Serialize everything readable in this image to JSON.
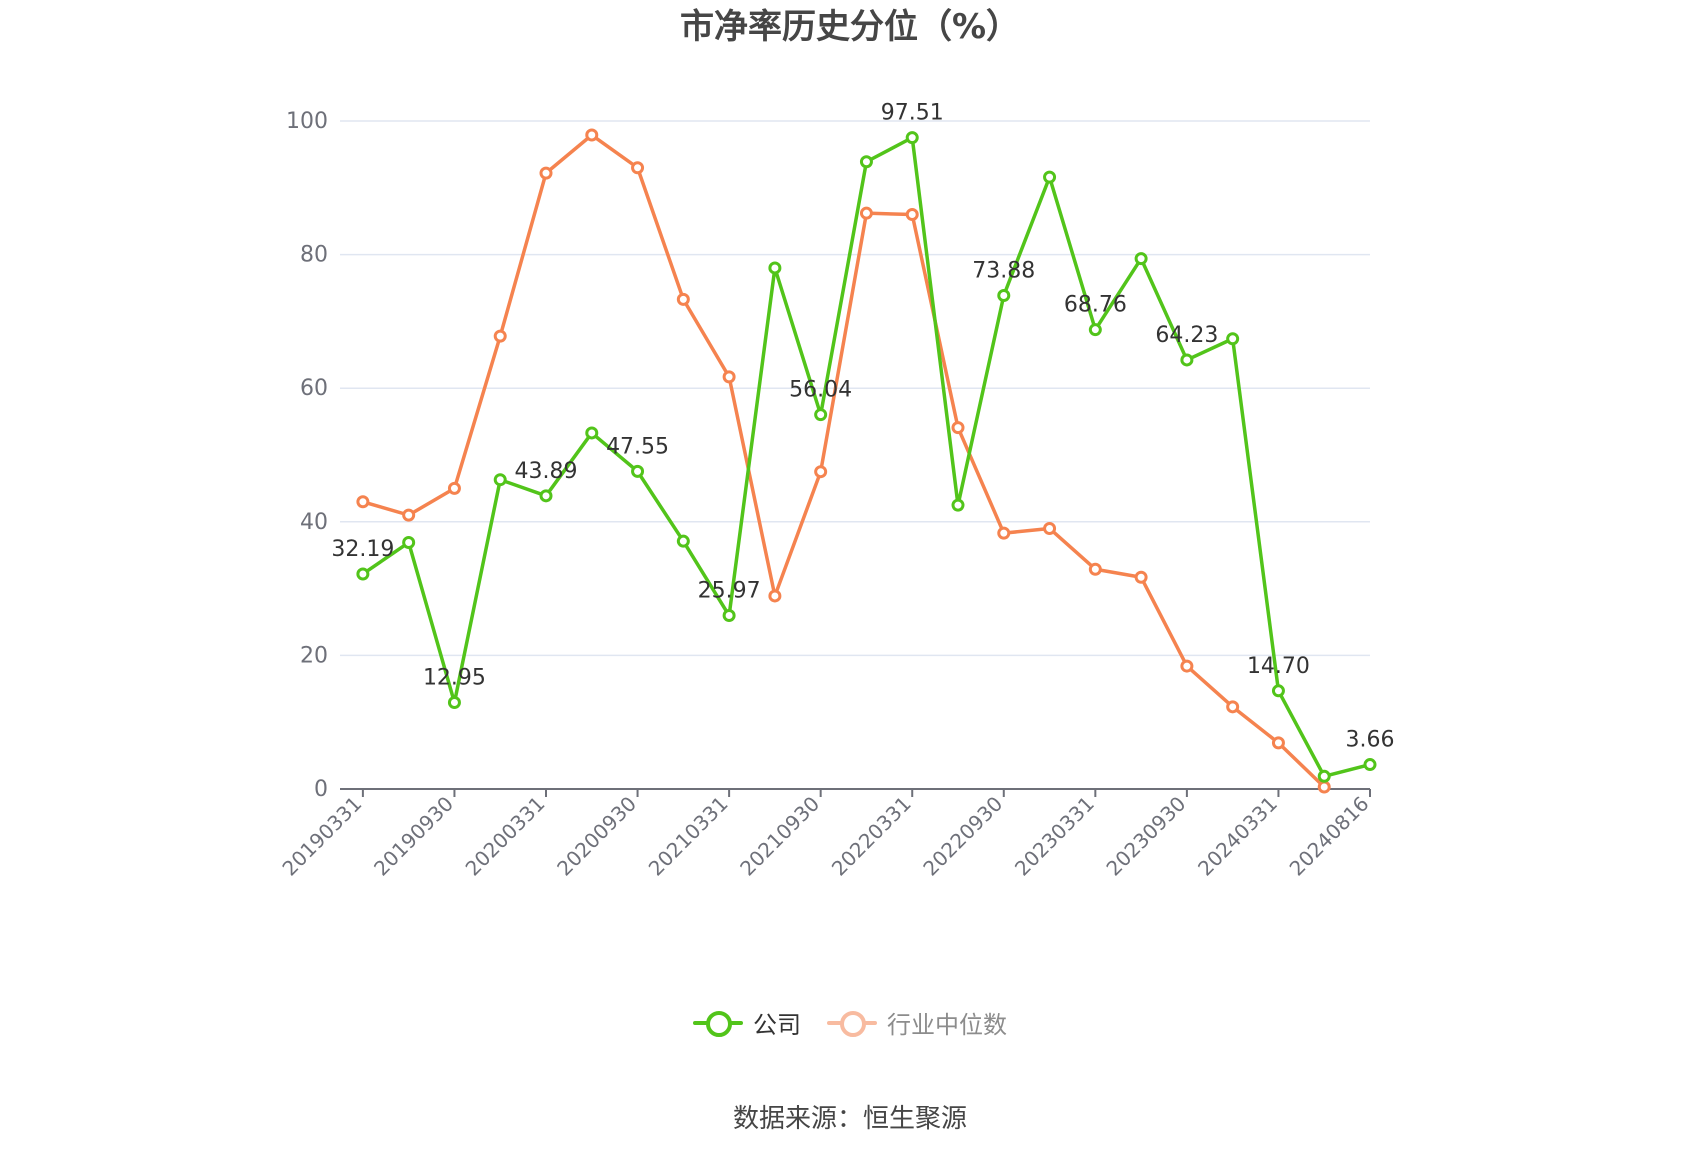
{
  "chart_data": {
    "type": "line",
    "title": "市净率历史分位（%）",
    "x": [
      "20190331",
      "20190630",
      "20190930",
      "20191231",
      "20200331",
      "20200630",
      "20200930",
      "20201231",
      "20210331",
      "20210630",
      "20210930",
      "20211231",
      "20220331",
      "20220630",
      "20220930",
      "20221231",
      "20230331",
      "20230630",
      "20230930",
      "20231231",
      "20240331",
      "20240630",
      "20240816"
    ],
    "x_tick_labels": [
      "20190331",
      "20190930",
      "20200331",
      "20200930",
      "20210331",
      "20210930",
      "20220331",
      "20220930",
      "20230331",
      "20230930",
      "20240331",
      "20240816"
    ],
    "ylim": [
      0,
      100
    ],
    "y_ticks": [
      0,
      20,
      40,
      60,
      80,
      100
    ],
    "grid": true,
    "legend_position": "bottom",
    "series": [
      {
        "name": "公司",
        "color": "#52c41a",
        "values": [
          32.19,
          36.9,
          12.95,
          46.3,
          43.89,
          53.3,
          47.55,
          37.1,
          25.97,
          78.0,
          56.04,
          93.9,
          97.51,
          42.5,
          73.88,
          91.6,
          68.76,
          79.4,
          64.23,
          67.4,
          14.7,
          1.9,
          3.66
        ],
        "labels": [
          "32.19",
          "",
          "12.95",
          "",
          "43.89",
          "",
          "47.55",
          "",
          "25.97",
          "",
          "56.04",
          "",
          "97.51",
          "",
          "73.88",
          "",
          "68.76",
          "",
          "64.23",
          "",
          "14.70",
          "",
          "3.66"
        ]
      },
      {
        "name": "行业中位数",
        "color": "#f5834f",
        "values": [
          43.0,
          41.0,
          45.0,
          67.8,
          92.2,
          97.9,
          93.0,
          73.3,
          61.7,
          28.9,
          47.5,
          86.2,
          86.0,
          54.1,
          38.3,
          39.0,
          32.9,
          31.7,
          18.4,
          12.3,
          6.9,
          0.3,
          null
        ]
      }
    ]
  },
  "legend": {
    "company": "公司",
    "industry": "行业中位数"
  },
  "source": "数据来源：恒生聚源"
}
